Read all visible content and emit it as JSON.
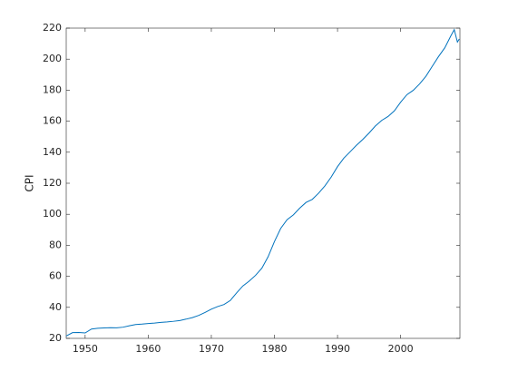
{
  "chart_data": {
    "type": "line",
    "ylabel": "CPI",
    "x": [
      1947,
      1948,
      1949,
      1950,
      1951,
      1952,
      1953,
      1954,
      1955,
      1956,
      1957,
      1958,
      1959,
      1960,
      1961,
      1962,
      1963,
      1964,
      1965,
      1966,
      1967,
      1968,
      1969,
      1970,
      1971,
      1972,
      1973,
      1974,
      1975,
      1976,
      1977,
      1978,
      1979,
      1980,
      1981,
      1982,
      1983,
      1984,
      1985,
      1986,
      1987,
      1988,
      1989,
      1990,
      1991,
      1992,
      1993,
      1994,
      1995,
      1996,
      1997,
      1998,
      1999,
      2000,
      2001,
      2002,
      2003,
      2004,
      2005,
      2006,
      2007,
      2008,
      2008.5,
      2009,
      2009.3
    ],
    "series": [
      {
        "name": "CPI",
        "color": "#0072bd",
        "values": [
          21.5,
          23.7,
          23.8,
          23.5,
          26,
          26.5,
          26.7,
          26.9,
          26.8,
          27.2,
          28.1,
          28.9,
          29.2,
          29.6,
          29.9,
          30.3,
          30.6,
          31.0,
          31.5,
          32.4,
          33.4,
          34.8,
          36.7,
          38.8,
          40.5,
          41.8,
          44.4,
          49.3,
          53.8,
          56.9,
          60.6,
          65.2,
          72.6,
          82.4,
          90.9,
          96.5,
          99.6,
          103.9,
          107.6,
          109.6,
          113.6,
          118.3,
          124.0,
          130.7,
          136.2,
          140.3,
          144.5,
          148.2,
          152.4,
          156.9,
          160.5,
          163.0,
          166.6,
          172.2,
          177.1,
          179.9,
          184.0,
          188.9,
          195.3,
          201.6,
          207.3,
          215.3,
          219,
          211,
          213
        ]
      }
    ],
    "xlim": [
      1947,
      2009.4
    ],
    "xticks": [
      1950,
      1960,
      1970,
      1980,
      1990,
      2000
    ],
    "ylim": [
      20,
      220
    ],
    "yticks": [
      20,
      40,
      60,
      80,
      100,
      120,
      140,
      160,
      180,
      200,
      220
    ]
  }
}
